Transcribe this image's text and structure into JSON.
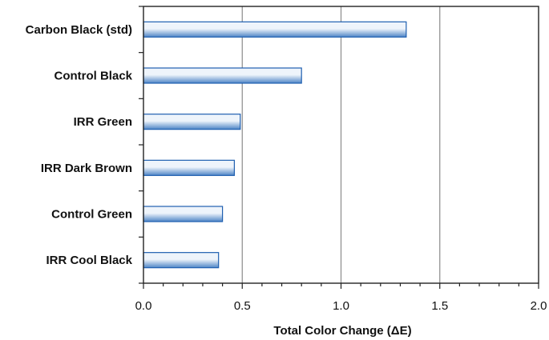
{
  "chart_data": {
    "type": "bar",
    "orientation": "horizontal",
    "categories": [
      "Carbon Black (std)",
      "Control Black",
      "IRR Green",
      "IRR Dark Brown",
      "Control Green",
      "IRR Cool Black"
    ],
    "values": [
      1.33,
      0.8,
      0.49,
      0.46,
      0.4,
      0.38
    ],
    "title": "",
    "xlabel": "Total Color Change (ΔE)",
    "ylabel": "",
    "xlim": [
      0.0,
      2.0
    ],
    "xticks": [
      0.0,
      0.5,
      1.0,
      1.5,
      2.0
    ],
    "xtick_labels": [
      "0.0",
      "0.5",
      "1.0",
      "1.5",
      "2.0"
    ],
    "grid": "vertical",
    "legend": "none",
    "colors": {
      "bar_fill_light": "#eef4fb",
      "bar_fill_dark": "#4d84c6",
      "bar_stroke": "#1f5fb0",
      "grid": "#8a8a8a",
      "axis": "#222222"
    }
  }
}
